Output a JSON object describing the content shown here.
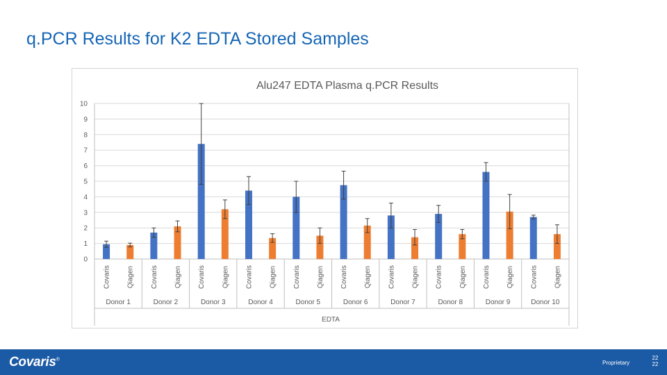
{
  "slide": {
    "title": "q.PCR Results for K2 EDTA Stored Samples"
  },
  "footer": {
    "logo_text": "Covaris",
    "logo_mark": "®",
    "note": "Proprietary",
    "page_number": "22",
    "page_number_total": "22"
  },
  "colors": {
    "title": "#1565b5",
    "footer_bar": "#1b5aa5",
    "covaris_series": "#4472c4",
    "qiagen_series": "#ed7d31"
  },
  "chart_data": {
    "type": "bar",
    "title": "Alu247 EDTA Plasma q.PCR Results",
    "xlabel": "EDTA",
    "ylabel": "",
    "ylim": [
      0,
      10
    ],
    "yticks": [
      "0",
      "1",
      "2",
      "3",
      "4",
      "5",
      "6",
      "7",
      "8",
      "9",
      "10"
    ],
    "grid": true,
    "legend": "none",
    "groups": [
      "Donor 1",
      "Donor 2",
      "Donor 3",
      "Donor 4",
      "Donor 5",
      "Donor 6",
      "Donor 7",
      "Donor 8",
      "Donor 9",
      "Donor 10"
    ],
    "subcategories": [
      "Covaris",
      "Qiagen"
    ],
    "series": [
      {
        "values": [
          0.95,
          1.7,
          7.4,
          4.4,
          4.0,
          4.75,
          2.8,
          2.9,
          5.6,
          2.7
        ],
        "errors": [
          0.2,
          0.3,
          2.6,
          0.9,
          1.0,
          0.9,
          0.8,
          0.55,
          0.6,
          0.12
        ],
        "color": "#4472c4"
      },
      {
        "values": [
          0.9,
          2.1,
          3.2,
          1.35,
          1.5,
          2.15,
          1.4,
          1.6,
          3.05,
          1.6
        ],
        "errors": [
          0.12,
          0.35,
          0.6,
          0.28,
          0.5,
          0.45,
          0.5,
          0.3,
          1.1,
          0.6
        ],
        "color": "#ed7d31"
      }
    ]
  }
}
